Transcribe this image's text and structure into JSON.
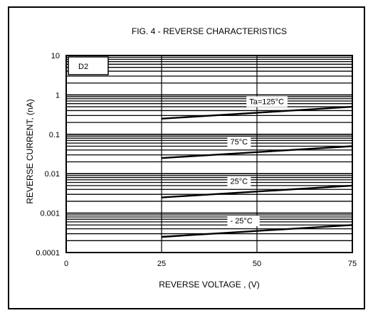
{
  "chart_data": {
    "type": "line",
    "title": "FIG. 4 - REVERSE CHARACTERISTICS",
    "xlabel": "REVERSE  VOLTAGE , (V)",
    "ylabel": "REVERSE  CURRENT, (nA)",
    "device_label": "D2",
    "x_scale": "linear",
    "y_scale": "log",
    "xlim": [
      0,
      75
    ],
    "ylim": [
      0.0001,
      10
    ],
    "x_ticks": [
      0,
      25,
      50,
      75
    ],
    "x_tick_labels": [
      "0",
      "25",
      "50",
      "75"
    ],
    "y_ticks": [
      10,
      1,
      0.1,
      0.01,
      0.001,
      0.0001
    ],
    "y_tick_labels": [
      "10",
      "1",
      "0.1",
      "0.01",
      "0.001",
      "0.0001"
    ],
    "grid": true,
    "series": [
      {
        "name": "Ta=125°C",
        "x": [
          25,
          75
        ],
        "y": [
          0.25,
          0.5
        ]
      },
      {
        "name": "75°C",
        "x": [
          25,
          75
        ],
        "y": [
          0.025,
          0.05
        ]
      },
      {
        "name": "25°C",
        "x": [
          25,
          75
        ],
        "y": [
          0.0025,
          0.005
        ]
      },
      {
        "name": "- 25°C",
        "x": [
          25,
          75
        ],
        "y": [
          0.00025,
          0.0005
        ]
      }
    ],
    "annotations": [
      {
        "text": "Ta=125°C",
        "x": 48,
        "y": 0.58
      },
      {
        "text": "75°C",
        "x": 43,
        "y": 0.055
      },
      {
        "text": "25°C",
        "x": 43,
        "y": 0.0055
      },
      {
        "text": "- 25°C",
        "x": 43,
        "y": 0.00055
      }
    ]
  }
}
